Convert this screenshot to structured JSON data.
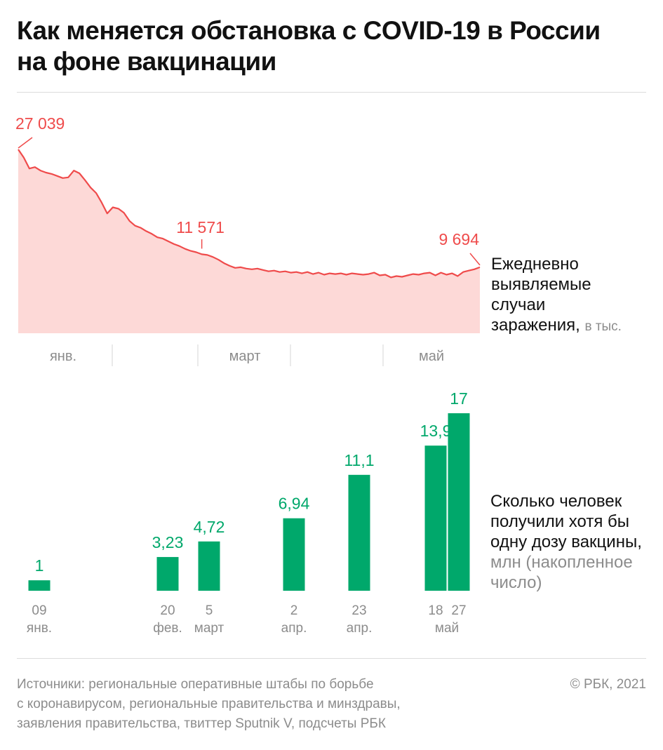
{
  "title": {
    "line1": "Как меняется обстановка с COVID-19 в России",
    "line2": "на фоне вакцинации"
  },
  "colors": {
    "line": "#ef4b4b",
    "area": "#fdd9d7",
    "label_red": "#ef4b4b",
    "bar": "#00a86b",
    "label_green": "#00a86b",
    "muted": "#8c8c8c"
  },
  "infection_desc": {
    "line1": "Ежедневно",
    "line2": "выявляемые",
    "line3": "случаи",
    "line4": "заражения,",
    "unit": "в тыс."
  },
  "vaccine_desc": {
    "line1": "Сколько человек",
    "line2": "получили хотя бы",
    "line3": "одну дозу вакцины,",
    "line4": "млн (накопленное",
    "line5": "число)"
  },
  "footer": {
    "line1": "Источники: региональные оперативные штабы по борьбе",
    "line2": "с коронавирусом, региональные правительства и минздравы,",
    "line3": "заявления правительства, твиттер Sputnik V, подсчеты РБК",
    "copyright": "© РБК, 2021"
  },
  "chart_data": [
    {
      "type": "area",
      "ylim": [
        0,
        30
      ],
      "x_ticks": [
        "янв.",
        "март",
        "май"
      ],
      "annotations": [
        {
          "day": 1,
          "label": "27 039"
        },
        {
          "day": 67,
          "label": "11 571"
        },
        {
          "day": 167,
          "label": "9 694"
        }
      ],
      "x_days": [
        1,
        3,
        5,
        7,
        9,
        11,
        13,
        15,
        17,
        19,
        21,
        23,
        25,
        27,
        29,
        31,
        33,
        35,
        37,
        39,
        41,
        43,
        45,
        47,
        49,
        51,
        53,
        55,
        57,
        59,
        61,
        63,
        65,
        67,
        69,
        71,
        73,
        75,
        77,
        79,
        81,
        83,
        85,
        87,
        89,
        91,
        93,
        95,
        97,
        99,
        101,
        103,
        105,
        107,
        109,
        111,
        113,
        115,
        117,
        119,
        121,
        123,
        125,
        127,
        129,
        131,
        133,
        135,
        137,
        139,
        141,
        143,
        145,
        147,
        149,
        151,
        153,
        155,
        157,
        159,
        161,
        163,
        165,
        167
      ],
      "values": [
        27.0,
        25.8,
        24.2,
        24.4,
        23.9,
        23.6,
        23.4,
        23.1,
        22.8,
        22.9,
        23.9,
        23.5,
        22.5,
        21.4,
        20.6,
        19.2,
        17.6,
        18.5,
        18.3,
        17.7,
        16.5,
        15.8,
        15.5,
        15.0,
        14.6,
        14.1,
        13.9,
        13.5,
        13.1,
        12.8,
        12.4,
        12.1,
        11.9,
        11.6,
        11.5,
        11.2,
        10.8,
        10.3,
        9.9,
        9.6,
        9.7,
        9.5,
        9.4,
        9.5,
        9.3,
        9.1,
        9.2,
        9.0,
        9.1,
        8.9,
        9.0,
        8.8,
        9.0,
        8.7,
        8.9,
        8.6,
        8.8,
        8.7,
        8.8,
        8.6,
        8.8,
        8.7,
        8.6,
        8.7,
        8.9,
        8.5,
        8.6,
        8.2,
        8.4,
        8.3,
        8.5,
        8.7,
        8.6,
        8.8,
        8.9,
        8.5,
        8.9,
        8.6,
        8.8,
        8.4,
        9.0,
        9.2,
        9.4,
        9.7
      ]
    },
    {
      "type": "bar",
      "categories": [
        "09 янв.",
        "20 фев.",
        "5 март",
        "2 апр.",
        "23 апр.",
        "18 май",
        "27 май"
      ],
      "values": [
        1,
        3.23,
        4.72,
        6.94,
        11.1,
        13.9,
        17
      ],
      "value_labels": [
        "1",
        "3,23",
        "4,72",
        "6,94",
        "11,1",
        "13,9",
        "17"
      ],
      "date_line1": [
        "09",
        "20",
        "5",
        "2",
        "23",
        "18",
        "27"
      ],
      "date_line2": [
        "янв.",
        "фев.",
        "март",
        "апр.",
        "апр.",
        "",
        ""
      ],
      "shared_month": "май",
      "ylim": [
        0,
        17
      ]
    }
  ]
}
